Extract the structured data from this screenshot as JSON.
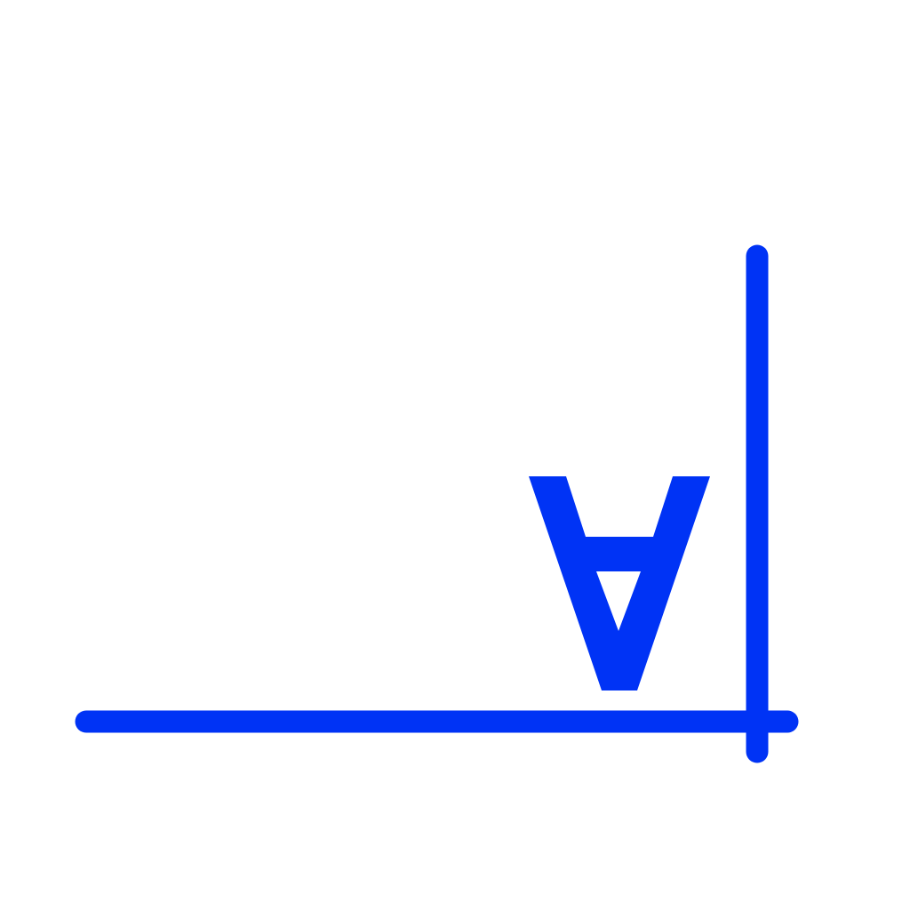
{
  "glyph": {
    "char": "A",
    "orientation": "upside-down"
  },
  "colors": {
    "background": "#ffffff",
    "stroke": "#0033f5"
  }
}
